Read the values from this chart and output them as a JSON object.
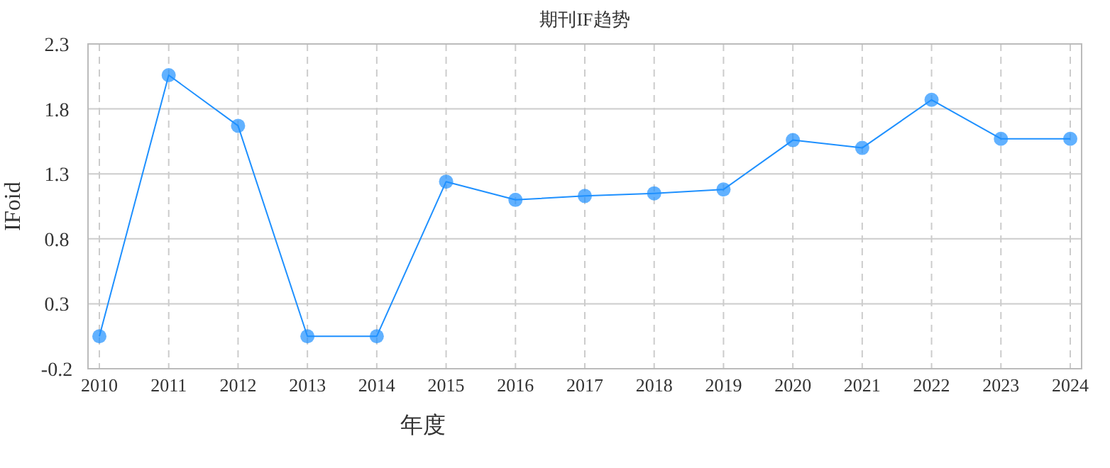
{
  "chart_data": {
    "type": "line",
    "title": "期刊IF趋势",
    "xlabel": "年度",
    "ylabel": "IFoid",
    "categories": [
      "2010",
      "2011",
      "2012",
      "2013",
      "2014",
      "2015",
      "2016",
      "2017",
      "2018",
      "2019",
      "2020",
      "2021",
      "2022",
      "2023",
      "2024"
    ],
    "series": [
      {
        "color": "#1e90ff",
        "values": [
          0.05,
          2.06,
          1.67,
          0.05,
          0.05,
          1.24,
          1.1,
          1.13,
          1.15,
          1.18,
          1.56,
          1.5,
          1.87,
          1.57,
          1.57
        ]
      }
    ],
    "ylim": [
      -0.2,
      2.3
    ],
    "yticks": [
      -0.2,
      0.3,
      0.8,
      1.3,
      1.8,
      2.3
    ],
    "grid": true,
    "marker": "circle",
    "line_style": "solid"
  }
}
